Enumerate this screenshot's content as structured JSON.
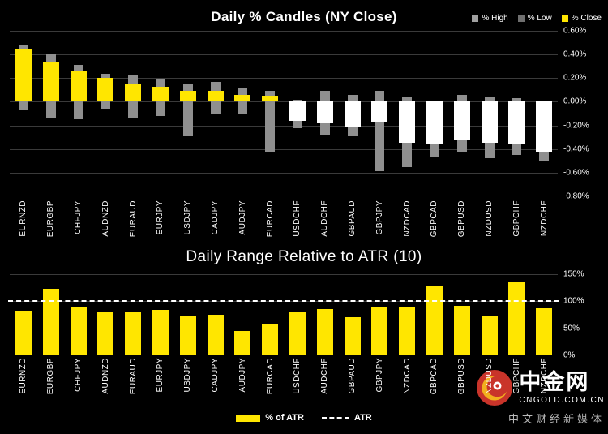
{
  "colors": {
    "background": "#000000",
    "wick": "#8f8f8f",
    "close_up": "#ffe600",
    "close_down": "#ffffff",
    "bar_yellow": "#ffe600",
    "grid": "#3a3a3a",
    "atr_line": "#ffffff",
    "logo_red": "#c9342a",
    "logo_gold": "#f2b01e"
  },
  "watermark": {
    "brand": "中金网",
    "domain": "CNGOLD.COM.CN",
    "tagline": "中文财经新媒体"
  },
  "chart_data": [
    {
      "type": "candlestick",
      "title": "Daily % Candles (NY Close)",
      "legend": [
        {
          "label": "% High",
          "color": "#a0a0a0"
        },
        {
          "label": "% Low",
          "color": "#6f6f6f"
        },
        {
          "label": "% Close",
          "color": "#ffe600"
        }
      ],
      "ylim": [
        -0.8,
        0.6
      ],
      "ytick_step": 0.2,
      "yticks": [
        "0.60%",
        "0.40%",
        "0.20%",
        "0.00%",
        "-0.20%",
        "-0.40%",
        "-0.60%",
        "-0.80%"
      ],
      "grid": true,
      "legend_position": "top-right",
      "categories": [
        "EURNZD",
        "EURGBP",
        "CHFJPY",
        "AUDNZD",
        "EURAUD",
        "EURJPY",
        "USDJPY",
        "CADJPY",
        "AUDJPY",
        "EURCAD",
        "USDCHF",
        "AUDCHF",
        "GBPAUD",
        "GBPJPY",
        "NZDCAD",
        "GBPCAD",
        "GBPUSD",
        "NZDUSD",
        "GBPCHF",
        "NZDCHF"
      ],
      "series": [
        {
          "name": "% High",
          "values": [
            0.48,
            0.4,
            0.31,
            0.24,
            0.22,
            0.19,
            0.15,
            0.17,
            0.11,
            0.09,
            0.02,
            0.09,
            0.06,
            0.09,
            0.04,
            0.01,
            0.06,
            0.04,
            0.03,
            0.01
          ]
        },
        {
          "name": "% Low",
          "values": [
            -0.07,
            -0.14,
            -0.15,
            -0.06,
            -0.14,
            -0.12,
            -0.29,
            -0.11,
            -0.11,
            -0.42,
            -0.22,
            -0.28,
            -0.29,
            -0.59,
            -0.55,
            -0.46,
            -0.42,
            -0.48,
            -0.45,
            -0.5
          ]
        },
        {
          "name": "% Close",
          "values": [
            0.44,
            0.33,
            0.26,
            0.2,
            0.15,
            0.13,
            0.09,
            0.09,
            0.06,
            0.05,
            -0.16,
            -0.18,
            -0.21,
            -0.17,
            -0.35,
            -0.36,
            -0.32,
            -0.35,
            -0.36,
            -0.42
          ]
        }
      ]
    },
    {
      "type": "bar",
      "title": "Daily Range Relative to ATR (10)",
      "ylim": [
        0,
        150
      ],
      "ytick_step": 50,
      "yticks": [
        "150%",
        "100%",
        "50%",
        "0%"
      ],
      "grid": true,
      "legend_position": "bottom-center",
      "categories": [
        "EURNZD",
        "EURGBP",
        "CHFJPY",
        "AUDNZD",
        "EURAUD",
        "EURJPY",
        "USDJPY",
        "CADJPY",
        "AUDJPY",
        "EURCAD",
        "USDCHF",
        "AUDCHF",
        "GBPAUD",
        "GBPJPY",
        "NZDCAD",
        "GBPCAD",
        "GBPUSD",
        "NZDUSD",
        "GBPCHF",
        "NZDCHF"
      ],
      "values": [
        83,
        123,
        88,
        79,
        79,
        84,
        73,
        75,
        45,
        57,
        81,
        85,
        70,
        88,
        90,
        127,
        91,
        73,
        135,
        87
      ],
      "reference_line": {
        "label": "ATR",
        "value": 100
      },
      "legend": [
        {
          "label": "% of ATR",
          "color": "#ffe600",
          "type": "bar"
        },
        {
          "label": "ATR",
          "color": "#ffffff",
          "type": "dashed-line"
        }
      ]
    }
  ]
}
